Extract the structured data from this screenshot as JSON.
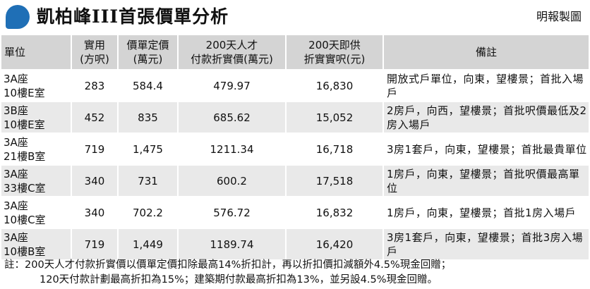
{
  "header": {
    "title": "凱柏峰III首張價單分析",
    "credit": "明報製圖"
  },
  "columns": [
    {
      "line1": "單位",
      "line2": ""
    },
    {
      "line1": "實用",
      "line2": "(方呎)"
    },
    {
      "line1": "價單定價",
      "line2": "(萬元)"
    },
    {
      "line1": "200天人才",
      "line2": "付款折實價(萬元)"
    },
    {
      "line1": "200天即供",
      "line2": "折實實呎(元)"
    },
    {
      "line1": "備註",
      "line2": ""
    }
  ],
  "rows": [
    {
      "unit1": "3A座",
      "unit2": "10樓E室",
      "area": "283",
      "list_price": "584.4",
      "talent_price": "479.97",
      "per_sqft": "16,830",
      "remark": "開放式戶單位，向東，望樓景；首批入場戶"
    },
    {
      "unit1": "3B座",
      "unit2": "10樓E室",
      "area": "452",
      "list_price": "835",
      "talent_price": "685.62",
      "per_sqft": "15,052",
      "remark": "2房戶，向西，望樓景；首批呎價最低及2房入場戶"
    },
    {
      "unit1": "3A座",
      "unit2": "21樓B室",
      "area": "719",
      "list_price": "1,475",
      "talent_price": "1211.34",
      "per_sqft": "16,718",
      "remark": "3房1套戶，向東，望樓景；首批最貴單位"
    },
    {
      "unit1": "3A座",
      "unit2": "33樓C室",
      "area": "340",
      "list_price": "731",
      "talent_price": "600.2",
      "per_sqft": "17,518",
      "remark": "1房戶，向東，望樓景；首批呎價最高單位"
    },
    {
      "unit1": "3A座",
      "unit2": "10樓C室",
      "area": "340",
      "list_price": "702.2",
      "talent_price": "576.72",
      "per_sqft": "16,832",
      "remark": "1房戶，向東，望樓景；首批1房入場戶"
    },
    {
      "unit1": "3A座",
      "unit2": "10樓B室",
      "area": "719",
      "list_price": "1,449",
      "talent_price": "1189.74",
      "per_sqft": "16,420",
      "remark": "3房1套戶，向東，望樓景；首批3房入場戶"
    }
  ],
  "note": {
    "line1": "註：200天人才付款折實價以價單定價扣除最高14%折扣計，再以折扣價扣減額外4.5%現金回贈；",
    "line2": "120天付款計劃最高折扣為15%；建築期付款最高折扣為13%，並另設4.5%現金回贈。"
  }
}
